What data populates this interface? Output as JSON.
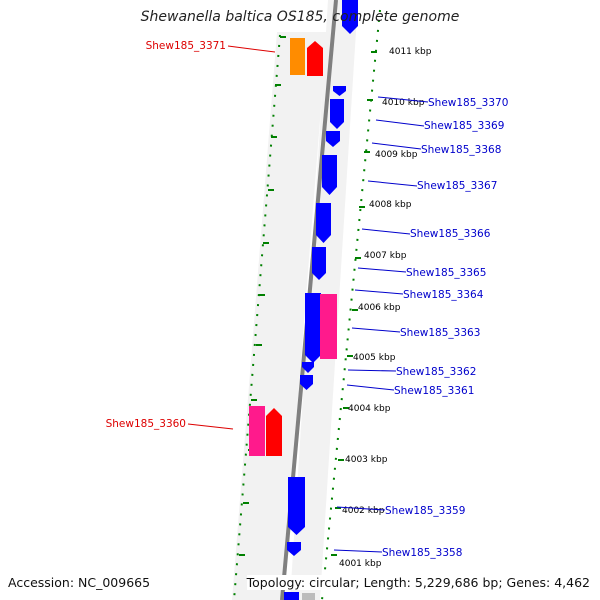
{
  "title": "Shewanella baltica OS185, complete genome",
  "footer": {
    "accession": "Accession: NC_009665",
    "summary": "Topology: circular; Length: 5,229,686 bp; Genes: 4,462"
  },
  "colors": {
    "forward_gene": "#0000ff",
    "rna_red": "#ff0000",
    "rna_pink": "#ff1a8c",
    "rna_orange": "#ff8c00",
    "label_blue": "#0000cc",
    "label_red": "#dd0000",
    "ruler_green": "#008000",
    "axis_gray": "#808080"
  },
  "ticks": [
    {
      "label": "4011 kbp"
    },
    {
      "label": "4010 kbp"
    },
    {
      "label": "4009 kbp"
    },
    {
      "label": "4008 kbp"
    },
    {
      "label": "4007 kbp"
    },
    {
      "label": "4006 kbp"
    },
    {
      "label": "4005 kbp"
    },
    {
      "label": "4004 kbp"
    },
    {
      "label": "4003 kbp"
    },
    {
      "label": "4002 kbp"
    },
    {
      "label": "4001 kbp"
    }
  ],
  "gene_labels": [
    {
      "label": "Shew185_3371"
    },
    {
      "label": "Shew185_3370"
    },
    {
      "label": "Shew185_3369"
    },
    {
      "label": "Shew185_3368"
    },
    {
      "label": "Shew185_3367"
    },
    {
      "label": "Shew185_3366"
    },
    {
      "label": "Shew185_3365"
    },
    {
      "label": "Shew185_3364"
    },
    {
      "label": "Shew185_3363"
    },
    {
      "label": "Shew185_3362"
    },
    {
      "label": "Shew185_3361"
    },
    {
      "label": "Shew185_3360"
    },
    {
      "label": "Shew185_3359"
    },
    {
      "label": "Shew185_3358"
    }
  ]
}
